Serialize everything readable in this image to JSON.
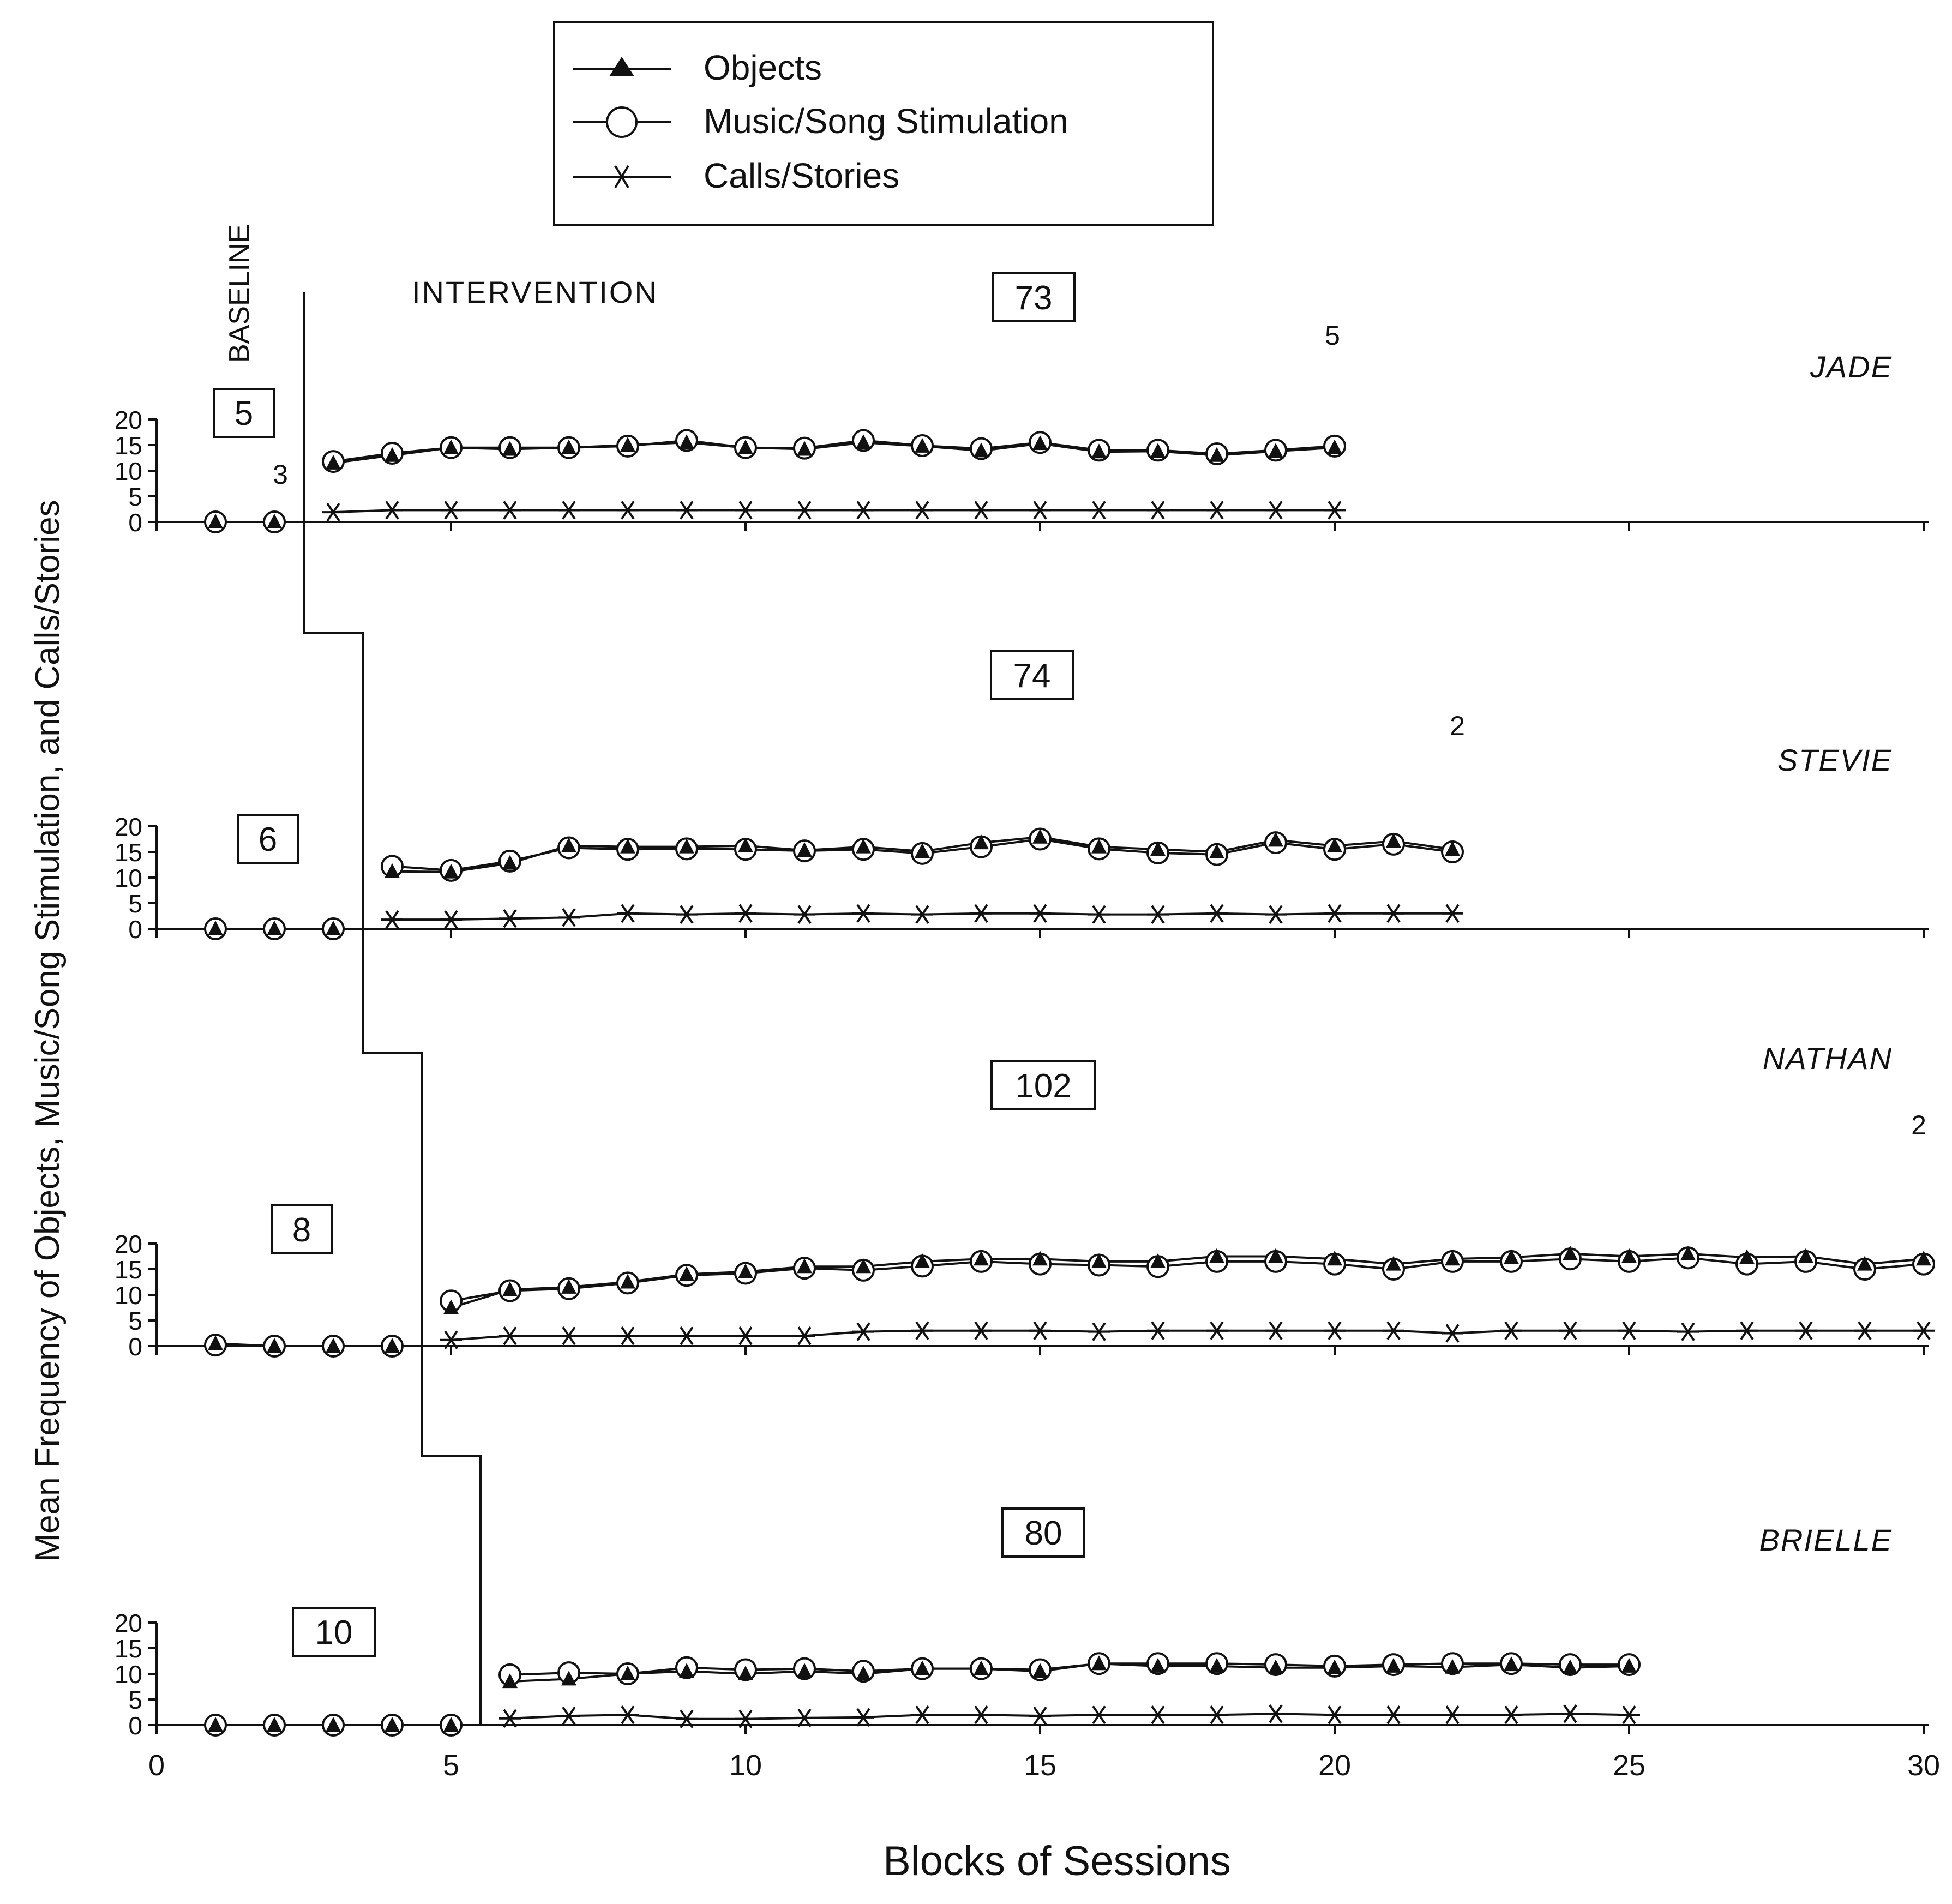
{
  "chart_data": {
    "type": "line",
    "ylabel": "Mean Frequency of Objects, Music/Song Stimulation, and Calls/Stories",
    "xlabel": "Blocks of Sessions",
    "xlim": [
      0,
      30
    ],
    "ylim": [
      0,
      20
    ],
    "x_ticks": [
      0,
      5,
      10,
      15,
      20,
      25,
      30
    ],
    "y_ticks": [
      0,
      5,
      10,
      15,
      20
    ],
    "phase_labels": {
      "baseline": "BASELINE",
      "intervention": "INTERVENTION"
    },
    "legend": [
      {
        "series": "objects",
        "label": "Objects",
        "marker": "filled-triangle"
      },
      {
        "series": "music",
        "label": "Music/Song Stimulation",
        "marker": "open-circle"
      },
      {
        "series": "calls",
        "label": "Calls/Stories",
        "marker": "asterisk"
      }
    ],
    "panels": [
      {
        "name": "JADE",
        "baseline_box": "5",
        "intervention_box": "73",
        "baseline_note": "3",
        "end_note": "5",
        "phase_change_after": 2.5,
        "baseline": {
          "x": [
            1,
            2
          ],
          "objects": [
            0,
            0
          ],
          "music": [
            0,
            0
          ],
          "calls": [
            0,
            0
          ]
        },
        "intervention": {
          "x": [
            3,
            4,
            5,
            6,
            7,
            8,
            9,
            10,
            11,
            12,
            13,
            14,
            15,
            16,
            17,
            18,
            19,
            20
          ],
          "objects": [
            11.5,
            13,
            14.5,
            14.2,
            14.5,
            15,
            15.5,
            14.5,
            14.2,
            15.5,
            14.8,
            13.9,
            15.3,
            13.7,
            13.8,
            13,
            13.8,
            14.5
          ],
          "music": [
            11.8,
            13.4,
            14.5,
            14.5,
            14.5,
            14.8,
            15.9,
            14.5,
            14.4,
            15.9,
            14.9,
            14.3,
            15.5,
            14,
            14,
            13.3,
            14,
            14.8
          ],
          "calls": [
            1.9,
            2.3,
            2.3,
            2.3,
            2.3,
            2.3,
            2.3,
            2.3,
            2.3,
            2.3,
            2.3,
            2.3,
            2.3,
            2.3,
            2.3,
            2.3,
            2.3,
            2.3
          ]
        }
      },
      {
        "name": "STEVIE",
        "baseline_box": "6",
        "intervention_box": "74",
        "end_note": "2",
        "phase_change_after": 3.5,
        "baseline": {
          "x": [
            1,
            2,
            3
          ],
          "objects": [
            0,
            0,
            0
          ],
          "music": [
            0,
            0,
            0
          ],
          "calls": [
            0,
            0,
            0
          ]
        },
        "intervention": {
          "x": [
            4,
            5,
            6,
            7,
            8,
            9,
            10,
            11,
            12,
            13,
            14,
            15,
            16,
            17,
            18,
            19,
            20,
            21,
            22
          ],
          "objects": [
            11.2,
            11.1,
            12.8,
            16.2,
            16,
            16,
            16.2,
            15.3,
            16,
            15.1,
            16.8,
            17.9,
            16,
            15.5,
            15,
            17.3,
            16.2,
            17.1,
            15.5
          ],
          "music": [
            12.2,
            11.4,
            13.2,
            15.8,
            15.5,
            15.6,
            15.5,
            15.2,
            15.5,
            14.7,
            16,
            17.5,
            15.6,
            14.8,
            14.5,
            16.8,
            15.5,
            16.5,
            15
          ],
          "calls": [
            1.8,
            1.8,
            2,
            2.2,
            3,
            2.8,
            3,
            2.8,
            3,
            2.8,
            3,
            3,
            2.8,
            2.8,
            3,
            2.8,
            3,
            3,
            3
          ]
        }
      },
      {
        "name": "NATHAN",
        "baseline_box": "8",
        "intervention_box": "102",
        "end_note": "2",
        "phase_change_after": 4.5,
        "baseline": {
          "x": [
            1,
            2,
            3,
            4
          ],
          "objects": [
            0.5,
            0,
            0,
            0
          ],
          "music": [
            0.2,
            0,
            0,
            0
          ],
          "calls": [
            0,
            0,
            0,
            0
          ]
        },
        "intervention": {
          "x": [
            5,
            6,
            7,
            8,
            9,
            10,
            11,
            12,
            13,
            14,
            15,
            16,
            17,
            18,
            19,
            20,
            21,
            22,
            23,
            24,
            25,
            26,
            27,
            28,
            29,
            30
          ],
          "objects": [
            7.5,
            11,
            11.5,
            12.5,
            14,
            14.5,
            15.5,
            15.5,
            16.5,
            17,
            17,
            16.5,
            16.5,
            17.5,
            17.5,
            17,
            16,
            17,
            17.3,
            18,
            17.5,
            18,
            17.3,
            17.5,
            16,
            17
          ],
          "music": [
            8.8,
            10.8,
            11.2,
            12.3,
            13.8,
            14.2,
            15.2,
            14.8,
            15.6,
            16.5,
            16,
            15.8,
            15.5,
            16.5,
            16.5,
            16,
            15,
            16.5,
            16.5,
            17,
            16.5,
            17.2,
            16,
            16.5,
            15,
            16
          ],
          "calls": [
            1.2,
            2,
            2,
            2,
            2,
            2,
            2,
            2.8,
            3,
            3,
            3,
            2.8,
            3,
            3,
            3,
            3,
            3,
            2.5,
            3,
            3,
            3,
            2.8,
            3,
            3,
            3,
            3
          ]
        }
      },
      {
        "name": "BRIELLE",
        "baseline_box": "10",
        "intervention_box": "80",
        "phase_change_after": 5.5,
        "baseline": {
          "x": [
            1,
            2,
            3,
            4,
            5
          ],
          "objects": [
            0,
            0,
            0,
            0,
            0
          ],
          "music": [
            0,
            0,
            0,
            0,
            0
          ],
          "calls": [
            0,
            0,
            0,
            0,
            0
          ]
        },
        "intervention": {
          "x": [
            6,
            7,
            8,
            9,
            10,
            11,
            12,
            13,
            14,
            15,
            16,
            17,
            18,
            19,
            20,
            21,
            22,
            23,
            24,
            25
          ],
          "objects": [
            8.5,
            9,
            10,
            10.5,
            10,
            10.5,
            10,
            11,
            11,
            10.5,
            12,
            11.5,
            11.5,
            11.2,
            11.2,
            11.5,
            11.3,
            11.8,
            11.2,
            11.5
          ],
          "music": [
            9.8,
            10.2,
            10,
            11.2,
            10.8,
            11,
            10.5,
            11,
            11,
            10.8,
            12,
            12,
            12,
            11.8,
            11.5,
            11.8,
            12,
            12,
            11.8,
            11.8
          ],
          "calls": [
            1.3,
            1.8,
            2,
            1.2,
            1.2,
            1.4,
            1.5,
            2,
            2,
            1.8,
            2,
            2,
            2,
            2.2,
            2,
            2,
            2,
            2,
            2.2,
            2
          ]
        }
      }
    ]
  }
}
